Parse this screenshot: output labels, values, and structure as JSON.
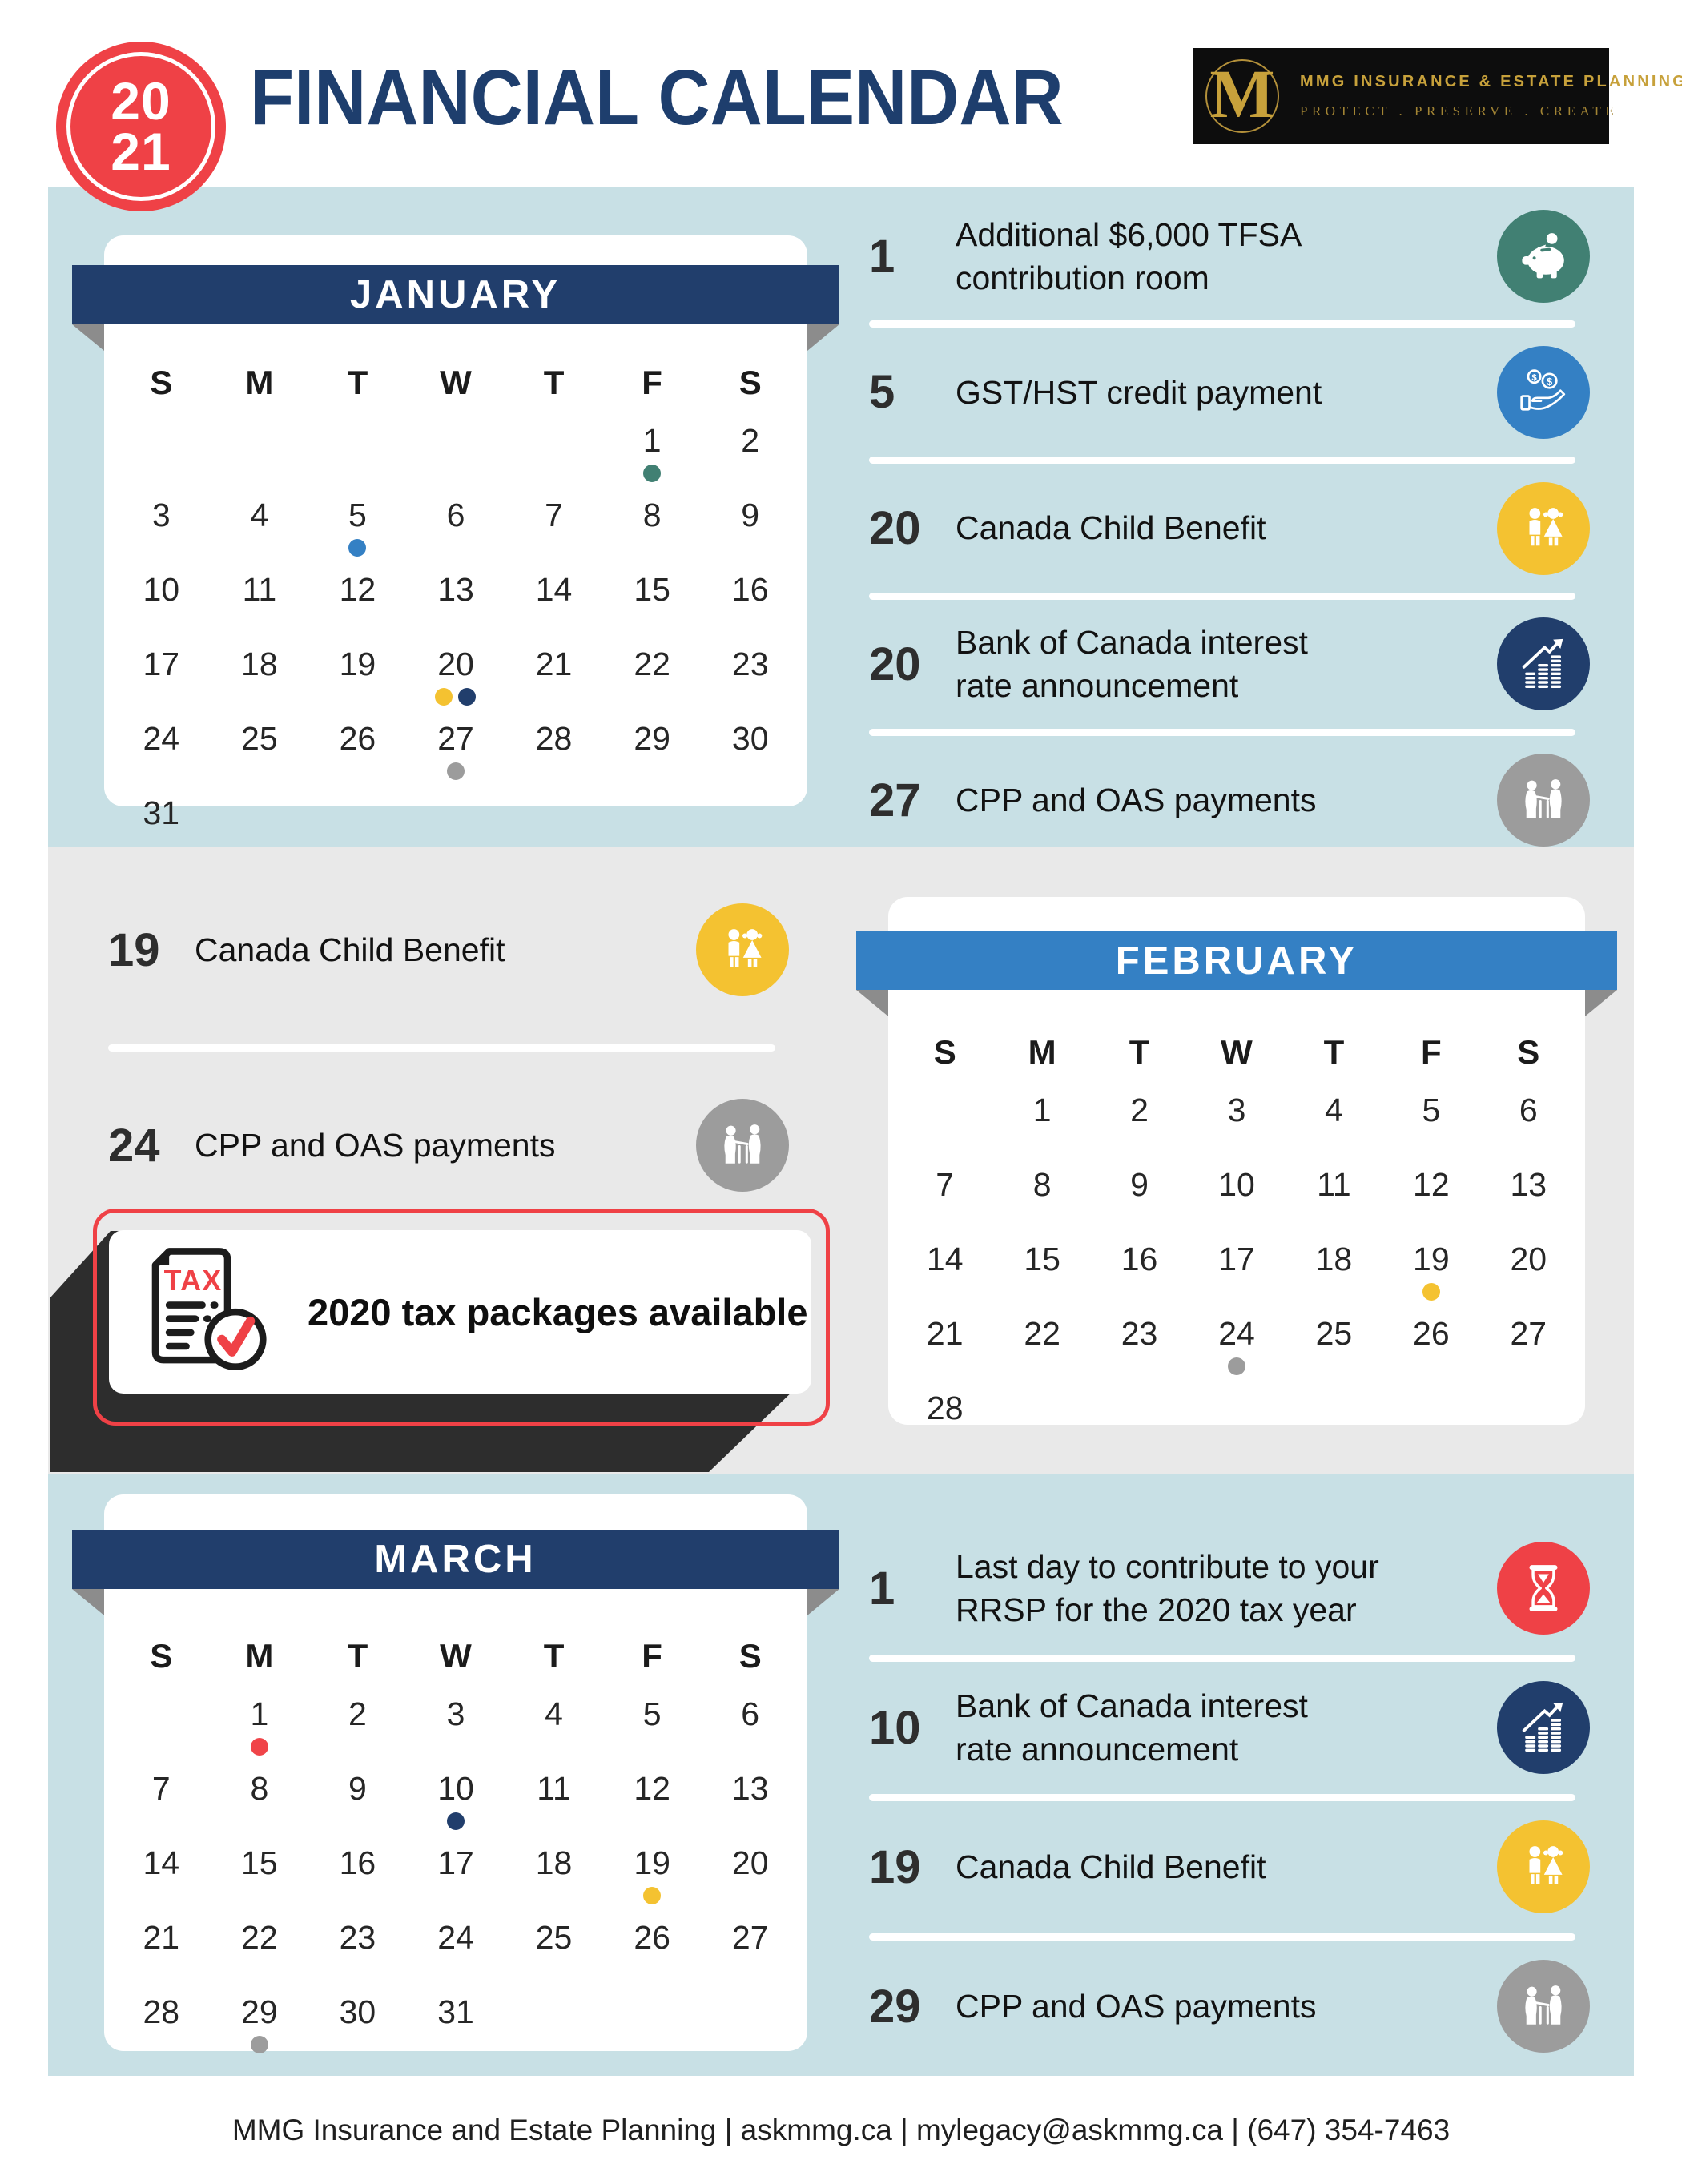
{
  "header": {
    "year_line1": "20",
    "year_line2": "21",
    "title": "FINANCIAL CALENDAR",
    "logo": {
      "monogram": "M",
      "name": "MMG INSURANCE & ESTATE PLANNING",
      "tagline": "PROTECT . PRESERVE . CREATE"
    }
  },
  "colors": {
    "badge_red": "#ef4146",
    "title_navy": "#1e3e6d",
    "light_blue_bg": "#c8e0e5",
    "gray_bg": "#e9e9e9",
    "navy_band": "#213e6c",
    "feb_blue_band": "#3480c4",
    "shadow_charcoal": "#2d2d2d",
    "fold_gray": "#8c8c8c"
  },
  "dot_colors": {
    "teal": "#418073",
    "blue": "#3480c4",
    "yellow": "#f4c231",
    "navy": "#213e6c",
    "gray": "#9c9c9c",
    "red": "#f04449"
  },
  "day_headers": [
    "S",
    "M",
    "T",
    "W",
    "T",
    "F",
    "S"
  ],
  "months": {
    "january": {
      "title": "JANUARY",
      "band_color": "#213e6c",
      "lead_blanks": 5,
      "num_days": 31,
      "dots": {
        "1": [
          "teal"
        ],
        "5": [
          "blue"
        ],
        "20": [
          "yellow",
          "navy"
        ],
        "27": [
          "gray"
        ]
      },
      "events": [
        {
          "day": "1",
          "text": "Additional $6,000 TFSA\ncontribution room",
          "icon": "piggy-bank",
          "color": "#418073"
        },
        {
          "day": "5",
          "text": "GST/HST credit payment",
          "icon": "hand-coins",
          "color": "#3480c4"
        },
        {
          "day": "20",
          "text": "Canada Child Benefit",
          "icon": "children",
          "color": "#f4c231"
        },
        {
          "day": "20",
          "text": "Bank of Canada interest\nrate announcement",
          "icon": "chart-coins",
          "color": "#213e6c"
        },
        {
          "day": "27",
          "text": "CPP and OAS payments",
          "icon": "elderly-couple",
          "color": "#9c9c9c"
        }
      ]
    },
    "february": {
      "title": "FEBRUARY",
      "band_color": "#3480c4",
      "lead_blanks": 1,
      "num_days": 28,
      "dots": {
        "19": [
          "yellow"
        ],
        "24": [
          "gray"
        ]
      },
      "events": [
        {
          "day": "19",
          "text": "Canada Child Benefit",
          "icon": "children",
          "color": "#f4c231"
        },
        {
          "day": "24",
          "text": "CPP and OAS payments",
          "icon": "elderly-couple",
          "color": "#9c9c9c"
        }
      ]
    },
    "march": {
      "title": "MARCH",
      "band_color": "#213e6c",
      "lead_blanks": 1,
      "num_days": 31,
      "dots": {
        "1": [
          "red"
        ],
        "10": [
          "navy"
        ],
        "19": [
          "yellow"
        ],
        "29": [
          "gray"
        ]
      },
      "events": [
        {
          "day": "1",
          "text": "Last day to contribute to your\nRRSP for the 2020 tax year",
          "icon": "hourglass",
          "color": "#ef4146"
        },
        {
          "day": "10",
          "text": "Bank of Canada interest\nrate announcement",
          "icon": "chart-coins",
          "color": "#213e6c"
        },
        {
          "day": "19",
          "text": "Canada Child Benefit",
          "icon": "children",
          "color": "#f4c231"
        },
        {
          "day": "29",
          "text": "CPP and OAS payments",
          "icon": "elderly-couple",
          "color": "#9c9c9c"
        }
      ]
    }
  },
  "tax_callout": {
    "label": "2020 tax packages available",
    "icon": "tax-document",
    "doc_text": "TAX"
  },
  "footer": {
    "text": "MMG Insurance and Estate Planning | askmmg.ca | mylegacy@askmmg.ca | (647) 354-7463"
  }
}
